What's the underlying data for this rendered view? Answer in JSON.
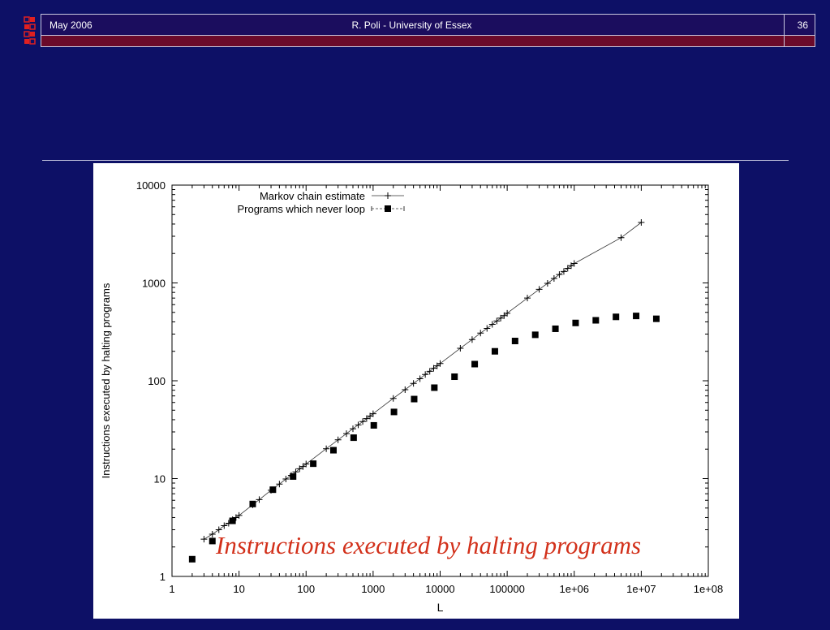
{
  "header": {
    "date": "May 2006",
    "center": "R. Poli - University of Essex",
    "page": "36"
  },
  "caption": "Instructions executed by halting programs",
  "colors": {
    "background": "#0d1066",
    "header_top": "#1b0d5e",
    "header_bottom": "#6b0a2a",
    "logo": "#e02020",
    "caption": "#d2301a"
  },
  "chart_data": {
    "type": "scatter",
    "title": "",
    "xlabel": "L",
    "ylabel": "Instructions executed by halting programs",
    "xscale": "log",
    "yscale": "log",
    "xlim": [
      1,
      100000000
    ],
    "ylim": [
      1,
      10000
    ],
    "x_tick_labels": [
      "1",
      "10",
      "100",
      "1000",
      "10000",
      "100000",
      "1e+06",
      "1e+07",
      "1e+08"
    ],
    "y_tick_labels": [
      "1",
      "10",
      "100",
      "1000",
      "10000"
    ],
    "legend_position": "top-left",
    "series": [
      {
        "name": "Markov chain estimate",
        "marker": "plus",
        "line": true,
        "x": [
          3,
          4,
          5,
          6,
          7,
          8,
          9,
          10,
          16,
          20,
          30,
          40,
          50,
          60,
          70,
          80,
          90,
          100,
          200,
          300,
          400,
          500,
          600,
          700,
          800,
          900,
          1000,
          2000,
          3000,
          4000,
          5000,
          6000,
          7000,
          8000,
          9000,
          10000,
          20000,
          30000,
          40000,
          50000,
          60000,
          70000,
          80000,
          90000,
          100000,
          200000,
          300000,
          400000,
          500000,
          600000,
          700000,
          800000,
          900000,
          1000000,
          5000000,
          10000000
        ],
        "y": [
          2.4,
          2.7,
          3.0,
          3.3,
          3.5,
          3.8,
          4.0,
          4.2,
          5.4,
          6.1,
          7.6,
          8.8,
          9.9,
          10.8,
          11.7,
          12.6,
          13.3,
          14.1,
          20.2,
          24.9,
          28.8,
          32.3,
          35.4,
          38.3,
          41.0,
          43.6,
          46.0,
          66.0,
          81.0,
          94.0,
          105,
          116,
          125,
          134,
          142,
          150,
          215,
          264,
          307,
          343,
          377,
          408,
          437,
          463,
          490,
          700,
          860,
          990,
          1110,
          1220,
          1310,
          1410,
          1500,
          1580,
          2900,
          4150
        ]
      },
      {
        "name": "Programs which never loop",
        "marker": "square",
        "line": false,
        "x": [
          2,
          4,
          8,
          16,
          32,
          64,
          128,
          256,
          512,
          1024,
          2048,
          4096,
          8192,
          16384,
          32768,
          65536,
          131072,
          262144,
          524288,
          1048576,
          2097152,
          4194304,
          8388608,
          16777216
        ],
        "y": [
          1.5,
          2.3,
          3.7,
          5.5,
          7.7,
          10.5,
          14.2,
          19.5,
          26.2,
          35.0,
          48.0,
          65.0,
          85.0,
          110,
          148,
          200,
          255,
          295,
          340,
          390,
          415,
          450,
          460,
          430
        ]
      }
    ]
  }
}
